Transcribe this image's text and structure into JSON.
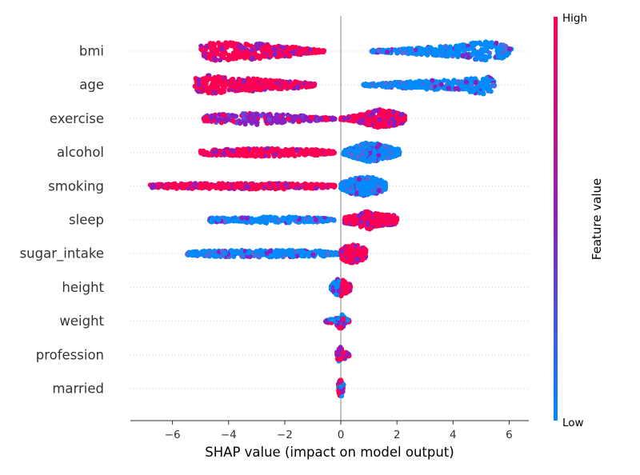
{
  "chart_data": {
    "type": "scatter",
    "subtype": "shap-beeswarm",
    "xlabel": "SHAP value (impact on model output)",
    "xlim": [
      -7.5,
      6.7
    ],
    "xticks": [
      -6,
      -4,
      -2,
      0,
      2,
      4,
      6
    ],
    "xtick_labels": [
      "−6",
      "−4",
      "−2",
      "0",
      "2",
      "4",
      "6"
    ],
    "features": [
      "bmi",
      "age",
      "exercise",
      "alcohol",
      "smoking",
      "sleep",
      "sugar_intake",
      "height",
      "weight",
      "profession",
      "married"
    ],
    "colorbar": {
      "label": "Feature value",
      "high_label": "High",
      "low_label": "Low",
      "high_color": "#ff0052",
      "mid_color": "#8b1ec0",
      "low_color": "#008bfb"
    },
    "series": [
      {
        "feature": "bmi",
        "min": -5.0,
        "max": 6.1,
        "clusters": [
          {
            "lo": -5.0,
            "hi": -0.6,
            "weights": [
              [
                -4.9,
                0.6
              ],
              [
                -4.5,
                1.0
              ],
              [
                -4.1,
                1.0
              ],
              [
                -3.6,
                0.7
              ],
              [
                -3.2,
                0.9
              ],
              [
                -2.6,
                0.7
              ],
              [
                -2.0,
                0.6
              ],
              [
                -1.3,
                0.3
              ],
              [
                -0.7,
                0.1
              ]
            ],
            "color": "high",
            "count": 360
          },
          {
            "lo": 1.1,
            "hi": 6.1,
            "weights": [
              [
                1.2,
                0.1
              ],
              [
                2.0,
                0.2
              ],
              [
                2.8,
                0.35
              ],
              [
                3.6,
                0.5
              ],
              [
                4.2,
                0.6
              ],
              [
                4.8,
                0.9
              ],
              [
                5.3,
                1.0
              ],
              [
                5.8,
                0.7
              ],
              [
                6.1,
                0.2
              ]
            ],
            "color": "low",
            "count": 340
          }
        ]
      },
      {
        "feature": "age",
        "min": -5.2,
        "max": 5.5,
        "clusters": [
          {
            "lo": -5.2,
            "hi": -0.9,
            "weights": [
              [
                -5.1,
                0.7
              ],
              [
                -4.7,
                1.0
              ],
              [
                -4.2,
                0.8
              ],
              [
                -3.7,
                0.6
              ],
              [
                -3.2,
                0.7
              ],
              [
                -2.6,
                0.5
              ],
              [
                -2.0,
                0.4
              ],
              [
                -1.4,
                0.3
              ],
              [
                -0.9,
                0.1
              ]
            ],
            "color": "high",
            "count": 380
          },
          {
            "lo": 0.8,
            "hi": 5.5,
            "weights": [
              [
                0.9,
                0.1
              ],
              [
                1.6,
                0.25
              ],
              [
                2.4,
                0.35
              ],
              [
                3.1,
                0.45
              ],
              [
                3.6,
                0.55
              ],
              [
                4.2,
                0.5
              ],
              [
                4.9,
                0.9
              ],
              [
                5.2,
                1.0
              ],
              [
                5.5,
                0.4
              ]
            ],
            "color": "low",
            "count": 320
          }
        ]
      },
      {
        "feature": "exercise",
        "min": -4.9,
        "max": 2.3,
        "clusters": [
          {
            "lo": -4.9,
            "hi": -0.2,
            "weights": [
              [
                -4.8,
                0.3
              ],
              [
                -4.3,
                0.5
              ],
              [
                -3.8,
                0.4
              ],
              [
                -3.2,
                0.7
              ],
              [
                -2.6,
                0.5
              ],
              [
                -2.0,
                0.4
              ],
              [
                -1.3,
                0.3
              ],
              [
                -0.6,
                0.15
              ],
              [
                -0.2,
                0.05
              ]
            ],
            "color": "mid",
            "count": 240
          },
          {
            "lo": 0.0,
            "hi": 2.3,
            "weights": [
              [
                0.0,
                0.1
              ],
              [
                0.5,
                0.3
              ],
              [
                1.1,
                0.8
              ],
              [
                1.5,
                1.0
              ],
              [
                1.9,
                0.7
              ],
              [
                2.3,
                0.4
              ]
            ],
            "color": "high",
            "count": 260
          }
        ]
      },
      {
        "feature": "alcohol",
        "min": -5.0,
        "max": 2.1,
        "clusters": [
          {
            "lo": -5.0,
            "hi": -0.2,
            "weights": [
              [
                -5.0,
                0.25
              ],
              [
                -4.3,
                0.3
              ],
              [
                -3.6,
                0.35
              ],
              [
                -2.8,
                0.45
              ],
              [
                -2.1,
                0.4
              ],
              [
                -1.4,
                0.35
              ],
              [
                -0.7,
                0.3
              ],
              [
                -0.2,
                0.1
              ]
            ],
            "color": "high",
            "count": 320
          },
          {
            "lo": 0.1,
            "hi": 2.1,
            "weights": [
              [
                0.1,
                0.2
              ],
              [
                0.5,
                0.6
              ],
              [
                0.9,
                1.0
              ],
              [
                1.3,
                0.9
              ],
              [
                1.7,
                0.6
              ],
              [
                2.1,
                0.3
              ]
            ],
            "color": "low",
            "count": 360
          }
        ]
      },
      {
        "feature": "smoking",
        "min": -6.8,
        "max": 1.6,
        "clusters": [
          {
            "lo": -6.8,
            "hi": -0.2,
            "weights": [
              [
                -6.8,
                0.15
              ],
              [
                -6.0,
                0.25
              ],
              [
                -5.0,
                0.3
              ],
              [
                -4.0,
                0.3
              ],
              [
                -3.0,
                0.3
              ],
              [
                -2.0,
                0.3
              ],
              [
                -1.0,
                0.25
              ],
              [
                -0.2,
                0.1
              ]
            ],
            "color": "high",
            "count": 360
          },
          {
            "lo": 0.0,
            "hi": 1.6,
            "weights": [
              [
                0.0,
                0.3
              ],
              [
                0.4,
                0.8
              ],
              [
                0.8,
                1.0
              ],
              [
                1.2,
                0.9
              ],
              [
                1.6,
                0.4
              ]
            ],
            "color": "low",
            "count": 300
          }
        ]
      },
      {
        "feature": "sleep",
        "min": -4.7,
        "max": 2.0,
        "clusters": [
          {
            "lo": -4.7,
            "hi": -0.2,
            "weights": [
              [
                -4.7,
                0.2
              ],
              [
                -4.0,
                0.25
              ],
              [
                -3.2,
                0.3
              ],
              [
                -2.4,
                0.35
              ],
              [
                -1.6,
                0.3
              ],
              [
                -0.9,
                0.25
              ],
              [
                -0.2,
                0.1
              ]
            ],
            "color": "low",
            "count": 220
          },
          {
            "lo": 0.1,
            "hi": 2.0,
            "weights": [
              [
                0.1,
                0.3
              ],
              [
                0.5,
                0.5
              ],
              [
                1.0,
                1.0
              ],
              [
                1.4,
                0.6
              ],
              [
                1.9,
                0.5
              ],
              [
                2.0,
                0.2
              ]
            ],
            "color": "high",
            "count": 280
          }
        ]
      },
      {
        "feature": "sugar_intake",
        "min": -5.5,
        "max": 0.9,
        "clusters": [
          {
            "lo": -5.5,
            "hi": -0.1,
            "weights": [
              [
                -5.5,
                0.2
              ],
              [
                -4.6,
                0.3
              ],
              [
                -3.6,
                0.35
              ],
              [
                -2.6,
                0.35
              ],
              [
                -1.6,
                0.35
              ],
              [
                -0.6,
                0.3
              ],
              [
                -0.1,
                0.1
              ]
            ],
            "color": "low",
            "count": 320
          },
          {
            "lo": 0.0,
            "hi": 0.9,
            "weights": [
              [
                0.0,
                0.5
              ],
              [
                0.3,
                1.0
              ],
              [
                0.6,
                0.9
              ],
              [
                0.9,
                0.5
              ]
            ],
            "color": "high",
            "count": 200
          }
        ]
      },
      {
        "feature": "height",
        "min": -0.35,
        "max": 0.35,
        "clusters": [
          {
            "lo": -0.35,
            "hi": 0.35,
            "weights": [
              [
                -0.35,
                0.2
              ],
              [
                -0.15,
                0.8
              ],
              [
                0.0,
                1.0
              ],
              [
                0.15,
                0.7
              ],
              [
                0.35,
                0.3
              ]
            ],
            "color": "split",
            "count": 110
          }
        ]
      },
      {
        "feature": "weight",
        "min": -0.55,
        "max": 0.3,
        "clusters": [
          {
            "lo": -0.55,
            "hi": 0.3,
            "weights": [
              [
                -0.55,
                0.1
              ],
              [
                -0.2,
                0.3
              ],
              [
                0.0,
                1.0
              ],
              [
                0.15,
                0.3
              ],
              [
                0.3,
                0.1
              ]
            ],
            "color": "mixed",
            "count": 70
          }
        ]
      },
      {
        "feature": "profession",
        "min": -0.15,
        "max": 0.3,
        "clusters": [
          {
            "lo": -0.15,
            "hi": 0.3,
            "weights": [
              [
                -0.15,
                0.3
              ],
              [
                0.0,
                1.0
              ],
              [
                0.15,
                0.4
              ],
              [
                0.3,
                0.1
              ]
            ],
            "color": "mixed",
            "count": 50
          }
        ]
      },
      {
        "feature": "married",
        "min": -0.1,
        "max": 0.1,
        "clusters": [
          {
            "lo": -0.1,
            "hi": 0.1,
            "weights": [
              [
                -0.1,
                0.5
              ],
              [
                0.0,
                1.0
              ],
              [
                0.1,
                0.5
              ]
            ],
            "color": "mixed",
            "count": 40
          }
        ]
      }
    ]
  }
}
